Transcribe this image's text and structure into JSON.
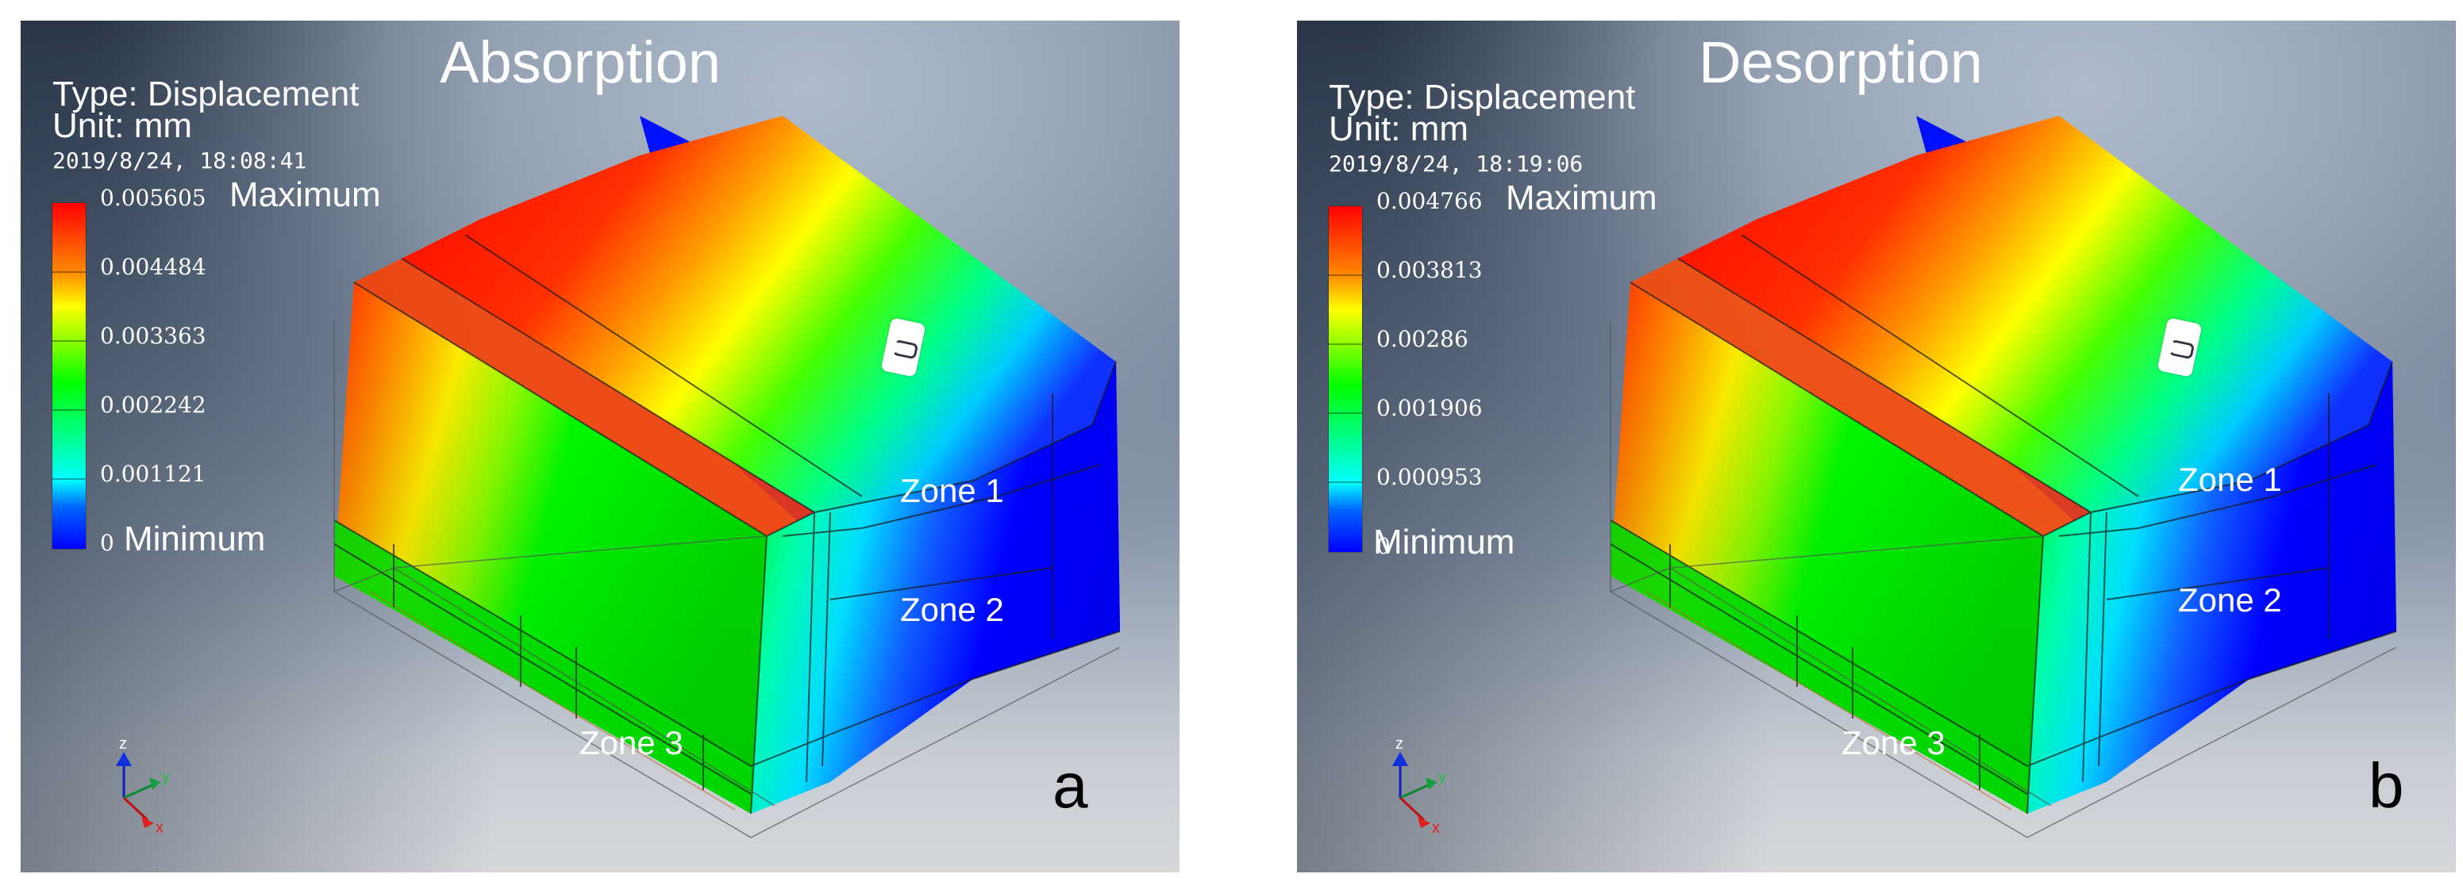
{
  "panels": [
    {
      "title": "Absorption",
      "type_line": "Type: Displacement",
      "unit_line": "Unit: mm",
      "timestamp": "2019/8/24, 18:08:41",
      "legend": {
        "values": [
          "0.005605",
          "0.004484",
          "0.003363",
          "0.002242",
          "0.001121",
          "0"
        ],
        "maximum_label": "Maximum",
        "minimum_label": "Minimum",
        "colors": [
          "#ff0000",
          "#ffff00",
          "#00ff00",
          "#00ffff",
          "#0000ff"
        ]
      },
      "zones": [
        "Zone 1",
        "Zone 2",
        "Zone 3"
      ],
      "axes": [
        "z",
        "y",
        "x"
      ],
      "panel_letter": "a"
    },
    {
      "title": "Desorption",
      "type_line": "Type: Displacement",
      "unit_line": "Unit: mm",
      "timestamp": "2019/8/24, 18:19:06",
      "legend": {
        "values": [
          "0.004766",
          "0.003813",
          "0.00286",
          "0.001906",
          "0.000953",
          "0"
        ],
        "maximum_label": "Maximum",
        "minimum_label": "Minimum",
        "colors": [
          "#ff0000",
          "#ffff00",
          "#00ff00",
          "#00ffff",
          "#0000ff"
        ]
      },
      "zones": [
        "Zone 1",
        "Zone 2",
        "Zone 3"
      ],
      "axes": [
        "z",
        "y",
        "x"
      ],
      "panel_letter": "b"
    }
  ]
}
